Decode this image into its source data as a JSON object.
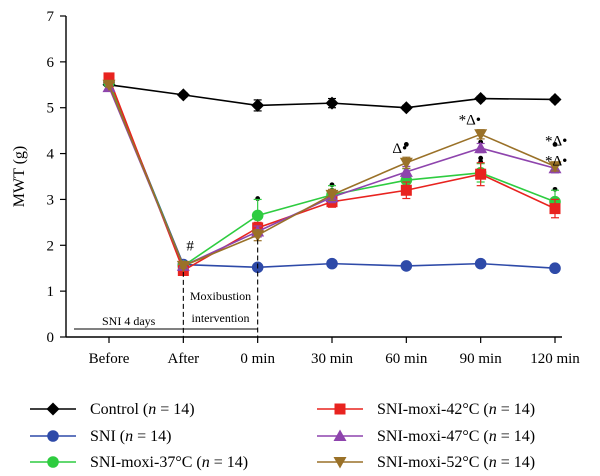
{
  "chart_data": {
    "type": "line",
    "ylabel": "MWT (g)",
    "xlabel": "",
    "ylim": [
      0,
      7
    ],
    "yticks": [
      0,
      1,
      2,
      3,
      4,
      5,
      6,
      7
    ],
    "categories": [
      "Before",
      "After",
      "0 min",
      "30 min",
      "60 min",
      "90 min",
      "120 min"
    ],
    "series": [
      {
        "name": "Control",
        "n": "14",
        "color": "#000000",
        "marker": "diamond",
        "values": [
          5.5,
          5.28,
          5.05,
          5.1,
          5.0,
          5.2,
          5.18
        ],
        "errors": [
          0.05,
          0.05,
          0.12,
          0.1,
          0.05,
          0.05,
          0.05
        ]
      },
      {
        "name": "SNI",
        "n": "14",
        "color": "#2e4aa8",
        "marker": "circle",
        "values": [
          5.55,
          1.58,
          1.52,
          1.6,
          1.55,
          1.6,
          1.5
        ],
        "errors": [
          0.05,
          0.05,
          0.05,
          0.05,
          0.05,
          0.05,
          0.05
        ]
      },
      {
        "name": "SNI-moxi-37°C",
        "n": "14",
        "color": "#2ecc40",
        "marker": "circle",
        "values": [
          5.55,
          1.55,
          2.65,
          3.1,
          3.42,
          3.58,
          2.95
        ],
        "errors": [
          0.05,
          0.05,
          0.35,
          0.2,
          0.25,
          0.2,
          0.25
        ]
      },
      {
        "name": "SNI-moxi-42°C",
        "n": "14",
        "color": "#e8231f",
        "marker": "square",
        "values": [
          5.65,
          1.45,
          2.38,
          2.95,
          3.2,
          3.55,
          2.8
        ],
        "errors": [
          0.05,
          0.05,
          0.12,
          0.12,
          0.18,
          0.25,
          0.2
        ]
      },
      {
        "name": "SNI-moxi-47°C",
        "n": "14",
        "color": "#8e44ad",
        "marker": "triangle-up",
        "values": [
          5.45,
          1.55,
          2.3,
          3.05,
          3.6,
          4.12,
          3.68
        ],
        "errors": [
          0.05,
          0.05,
          0.12,
          0.12,
          0.12,
          0.1,
          0.1
        ]
      },
      {
        "name": "SNI-moxi-52°C",
        "n": "14",
        "color": "#9a7128",
        "marker": "triangle-down",
        "values": [
          5.5,
          1.55,
          2.22,
          3.1,
          3.8,
          4.42,
          3.72
        ],
        "errors": [
          0.05,
          0.05,
          0.12,
          0.12,
          0.12,
          0.1,
          0.1
        ]
      }
    ],
    "annotations": {
      "hash": "#",
      "delta_dot": "Δ•",
      "star_delta_dot": "*Δ•",
      "star": "*",
      "sni_period": "SNI 4 days",
      "moxi_period_line1": "Moxibustion",
      "moxi_period_line2": "intervention"
    },
    "legend": {
      "placement": "bottom",
      "n_prefix": "(",
      "n_var": "n",
      "n_eq": " = ",
      "n_suffix": ")"
    }
  }
}
